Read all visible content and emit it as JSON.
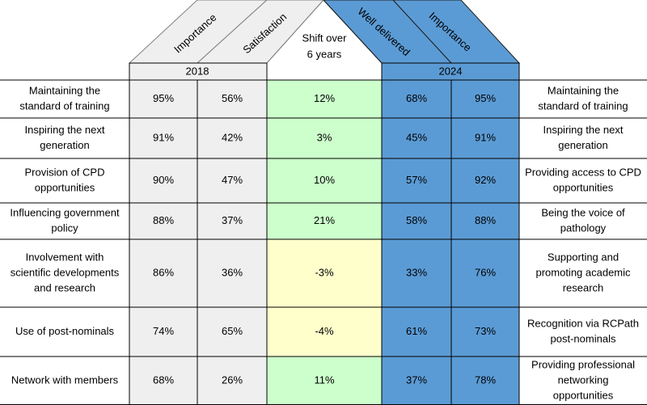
{
  "chart_data": {
    "type": "table",
    "groups": [
      {
        "label": "2018",
        "columns": [
          "Importance",
          "Satisfaction"
        ]
      },
      {
        "label": "2024",
        "columns": [
          "Well delivered",
          "Importance"
        ]
      }
    ],
    "shift_header": "Shift over 6 years",
    "shift_header_lines": [
      "Shift over",
      "6 years"
    ],
    "rows": [
      {
        "left_label": [
          "Maintaining the",
          "standard of training"
        ],
        "importance_2018": "95%",
        "satisfaction_2018": "56%",
        "shift": "12%",
        "well_delivered_2024": "68%",
        "importance_2024": "95%",
        "right_label": [
          "Maintaining the",
          "standard of training"
        ]
      },
      {
        "left_label": [
          "Inspiring the next",
          "generation"
        ],
        "importance_2018": "91%",
        "satisfaction_2018": "42%",
        "shift": "3%",
        "well_delivered_2024": "45%",
        "importance_2024": "91%",
        "right_label": [
          "Inspiring the next",
          "generation"
        ]
      },
      {
        "left_label": [
          "Provision of CPD",
          "opportunities"
        ],
        "importance_2018": "90%",
        "satisfaction_2018": "47%",
        "shift": "10%",
        "well_delivered_2024": "57%",
        "importance_2024": "92%",
        "right_label": [
          "Providing access to CPD",
          "opportunities"
        ]
      },
      {
        "left_label": [
          "Influencing government",
          "policy"
        ],
        "importance_2018": "88%",
        "satisfaction_2018": "37%",
        "shift": "21%",
        "well_delivered_2024": "58%",
        "importance_2024": "88%",
        "right_label": [
          "Being the voice of",
          "pathology"
        ]
      },
      {
        "left_label": [
          "Involvement with",
          "scientific developments",
          "and research"
        ],
        "importance_2018": "86%",
        "satisfaction_2018": "36%",
        "shift": "-3%",
        "well_delivered_2024": "33%",
        "importance_2024": "76%",
        "right_label": [
          "Supporting and",
          "promoting academic",
          "research"
        ]
      },
      {
        "left_label": [
          "Use of post-nominals"
        ],
        "importance_2018": "74%",
        "satisfaction_2018": "65%",
        "shift": "-4%",
        "well_delivered_2024": "61%",
        "importance_2024": "73%",
        "right_label": [
          "Recognition via RCPath",
          "post-nominals"
        ]
      },
      {
        "left_label": [
          "Network with members"
        ],
        "importance_2018": "68%",
        "satisfaction_2018": "26%",
        "shift": "11%",
        "well_delivered_2024": "37%",
        "importance_2024": "78%",
        "right_label": [
          "Providing professional",
          "networking",
          "opportunities"
        ]
      }
    ],
    "colors": {
      "grey_fill": "#efefef",
      "blue_fill": "#5b9bd5",
      "green_fill": "#ccffcc",
      "yellow_fill": "#ffffcc",
      "border": "#000000",
      "grey_line": "#808080"
    }
  }
}
